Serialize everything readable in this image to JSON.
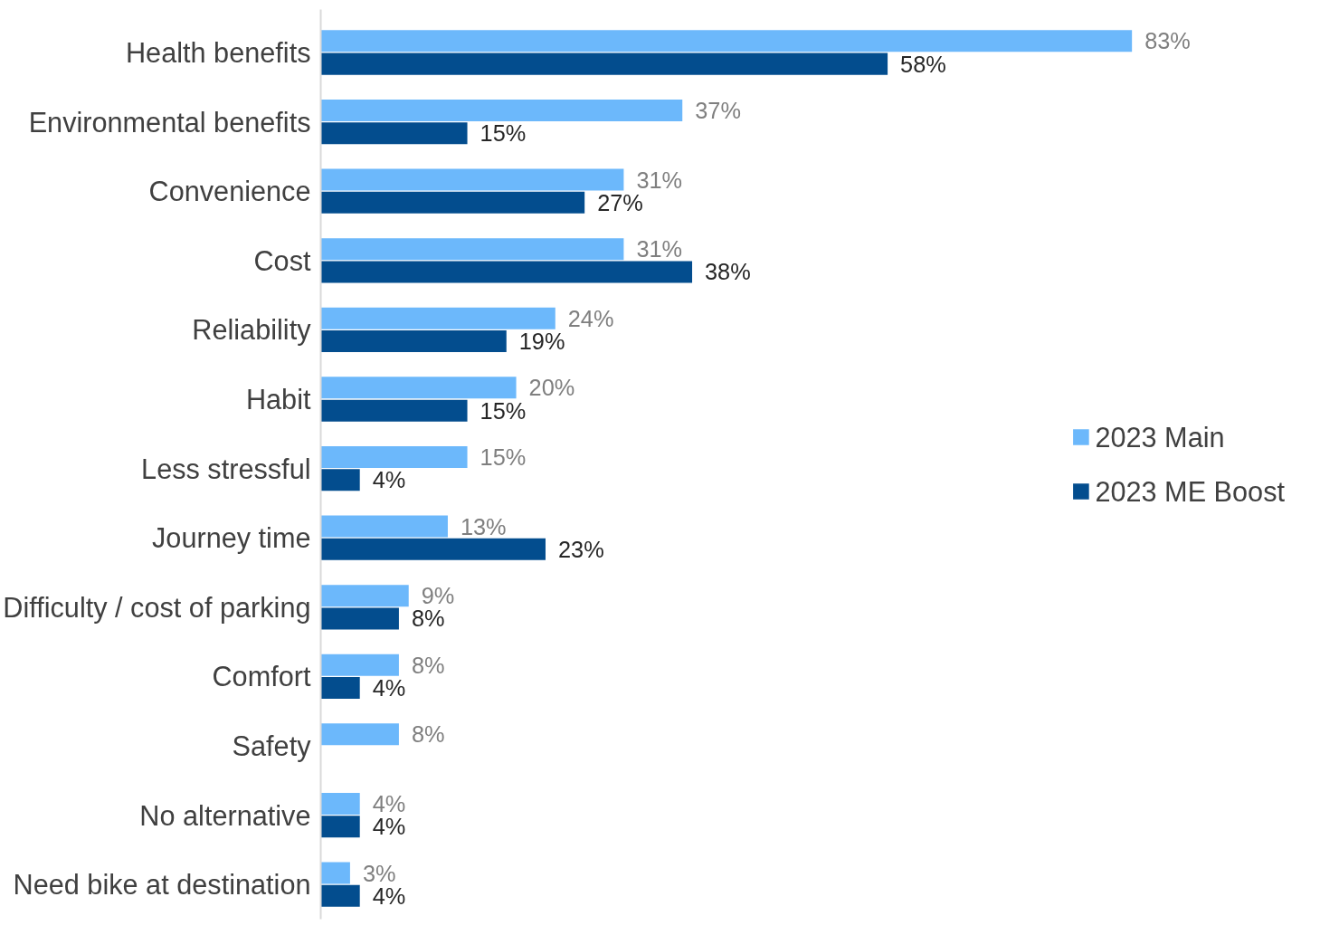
{
  "chart_data": {
    "type": "bar",
    "orientation": "horizontal",
    "tick_labels": "y",
    "data_labels": true,
    "legend": "right",
    "grid": false,
    "categories": [
      "Health benefits",
      "Environmental benefits",
      "Convenience",
      "Cost",
      "Reliability",
      "Habit",
      "Less stressful",
      "Journey time",
      "Difficulty / cost of parking",
      "Comfort",
      "Safety",
      "No alternative",
      "Need bike at destination"
    ],
    "series": [
      {
        "name": "2023 Main",
        "color": "#6cb8fb",
        "values": [
          83,
          37,
          31,
          31,
          24,
          20,
          15,
          13,
          9,
          8,
          8,
          4,
          3
        ],
        "value_labels": [
          "83%",
          "37%",
          "31%",
          "31%",
          "24%",
          "20%",
          "15%",
          "13%",
          "9%",
          "8%",
          "8%",
          "4%",
          "3%"
        ]
      },
      {
        "name": "2023 ME Boost",
        "color": "#034d8e",
        "values": [
          58,
          15,
          27,
          38,
          19,
          15,
          4,
          23,
          8,
          4,
          null,
          4,
          4
        ],
        "value_labels": [
          "58%",
          "15%",
          "27%",
          "38%",
          "19%",
          "15%",
          "4%",
          "23%",
          "8%",
          "4%",
          null,
          "4%",
          "4%"
        ]
      }
    ]
  }
}
